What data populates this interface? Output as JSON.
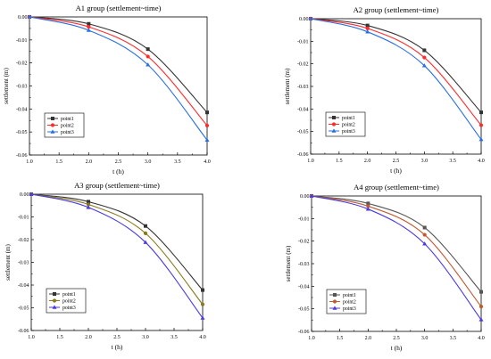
{
  "chart_data": [
    {
      "type": "line",
      "title": "A1 group (settlement~time)",
      "xlabel": "t (h)",
      "ylabel": "settlement (m)",
      "xlim": [
        1.0,
        4.0
      ],
      "ylim": [
        -0.06,
        0.0
      ],
      "xticks": [
        "1.0",
        "1.5",
        "2.0",
        "2.5",
        "3.0",
        "3.5",
        "4.0"
      ],
      "yticks": [
        "0.00",
        "-0.01",
        "-0.02",
        "-0.03",
        "-0.04",
        "-0.05",
        "-0.06"
      ],
      "x": [
        1.0,
        2.0,
        3.0,
        4.0
      ],
      "legend_position": "lower-left",
      "grid": false,
      "series": [
        {
          "name": "point1",
          "values": [
            0.0,
            -0.003,
            -0.014,
            -0.0415
          ],
          "color": "#333333",
          "marker": "square"
        },
        {
          "name": "point2",
          "values": [
            0.0,
            -0.0043,
            -0.0172,
            -0.0472
          ],
          "color": "#ff2a2a",
          "marker": "circle"
        },
        {
          "name": "point3",
          "values": [
            0.0,
            -0.0058,
            -0.0208,
            -0.0535
          ],
          "color": "#2a6fe0",
          "marker": "triangle"
        }
      ]
    },
    {
      "type": "line",
      "title": "A2 group (settlement~time)",
      "xlabel": "t (h)",
      "ylabel": "settlement (m)",
      "xlim": [
        1.0,
        4.0
      ],
      "ylim": [
        -0.06,
        0.0
      ],
      "xticks": [
        "1.0",
        "1.5",
        "2.0",
        "2.5",
        "3.0",
        "3.5",
        "4.0"
      ],
      "yticks": [
        "0.00",
        "-0.01",
        "-0.02",
        "-0.03",
        "-0.04",
        "-0.05",
        "-0.06"
      ],
      "x": [
        1.0,
        2.0,
        3.0,
        4.0
      ],
      "legend_position": "lower-left",
      "grid": false,
      "series": [
        {
          "name": "point1",
          "values": [
            0.0,
            -0.003,
            -0.014,
            -0.0415
          ],
          "color": "#333333",
          "marker": "square"
        },
        {
          "name": "point2",
          "values": [
            0.0,
            -0.0043,
            -0.0172,
            -0.0472
          ],
          "color": "#ff2a2a",
          "marker": "circle"
        },
        {
          "name": "point3",
          "values": [
            0.0,
            -0.0058,
            -0.0208,
            -0.0535
          ],
          "color": "#2a6fe0",
          "marker": "triangle"
        }
      ]
    },
    {
      "type": "line",
      "title": "A3 group (settlement~time)",
      "xlabel": "t (h)",
      "ylabel": "settlement (m)",
      "xlim": [
        1.0,
        4.0
      ],
      "ylim": [
        -0.06,
        0.0
      ],
      "xticks": [
        "1.0",
        "1.5",
        "2.0",
        "2.5",
        "3.0",
        "3.5",
        "4.0"
      ],
      "yticks": [
        "0.00",
        "-0.01",
        "-0.02",
        "-0.03",
        "-0.04",
        "-0.05",
        "-0.06"
      ],
      "x": [
        1.0,
        2.0,
        3.0,
        4.0
      ],
      "legend_position": "lower-left",
      "grid": false,
      "series": [
        {
          "name": "point1",
          "values": [
            0.0,
            -0.0033,
            -0.014,
            -0.0422
          ],
          "color": "#333333",
          "marker": "square"
        },
        {
          "name": "point2",
          "values": [
            0.0,
            -0.0045,
            -0.0172,
            -0.0485
          ],
          "color": "#8a7a1a",
          "marker": "circle"
        },
        {
          "name": "point3",
          "values": [
            0.0,
            -0.0058,
            -0.0212,
            -0.0545
          ],
          "color": "#4a3ae0",
          "marker": "triangle"
        }
      ]
    },
    {
      "type": "line",
      "title": "A4 group (settlement~time)",
      "xlabel": "t (h)",
      "ylabel": "settlement (m)",
      "xlim": [
        1.0,
        4.0
      ],
      "ylim": [
        -0.06,
        0.0
      ],
      "xticks": [
        "1.0",
        "1.5",
        "2.0",
        "2.5",
        "3.0",
        "3.5",
        "4.0"
      ],
      "yticks": [
        "0.00",
        "-0.01",
        "-0.02",
        "-0.03",
        "-0.04",
        "-0.05",
        "-0.06"
      ],
      "x": [
        1.0,
        2.0,
        3.0,
        4.0
      ],
      "legend_position": "lower-left",
      "grid": false,
      "series": [
        {
          "name": "point1",
          "values": [
            0.0,
            -0.0033,
            -0.014,
            -0.0425
          ],
          "color": "#555555",
          "marker": "square"
        },
        {
          "name": "point2",
          "values": [
            0.0,
            -0.0045,
            -0.0172,
            -0.049
          ],
          "color": "#c05a30",
          "marker": "circle"
        },
        {
          "name": "point3",
          "values": [
            0.0,
            -0.0058,
            -0.0212,
            -0.0548
          ],
          "color": "#4a3ae0",
          "marker": "triangle"
        }
      ]
    }
  ]
}
